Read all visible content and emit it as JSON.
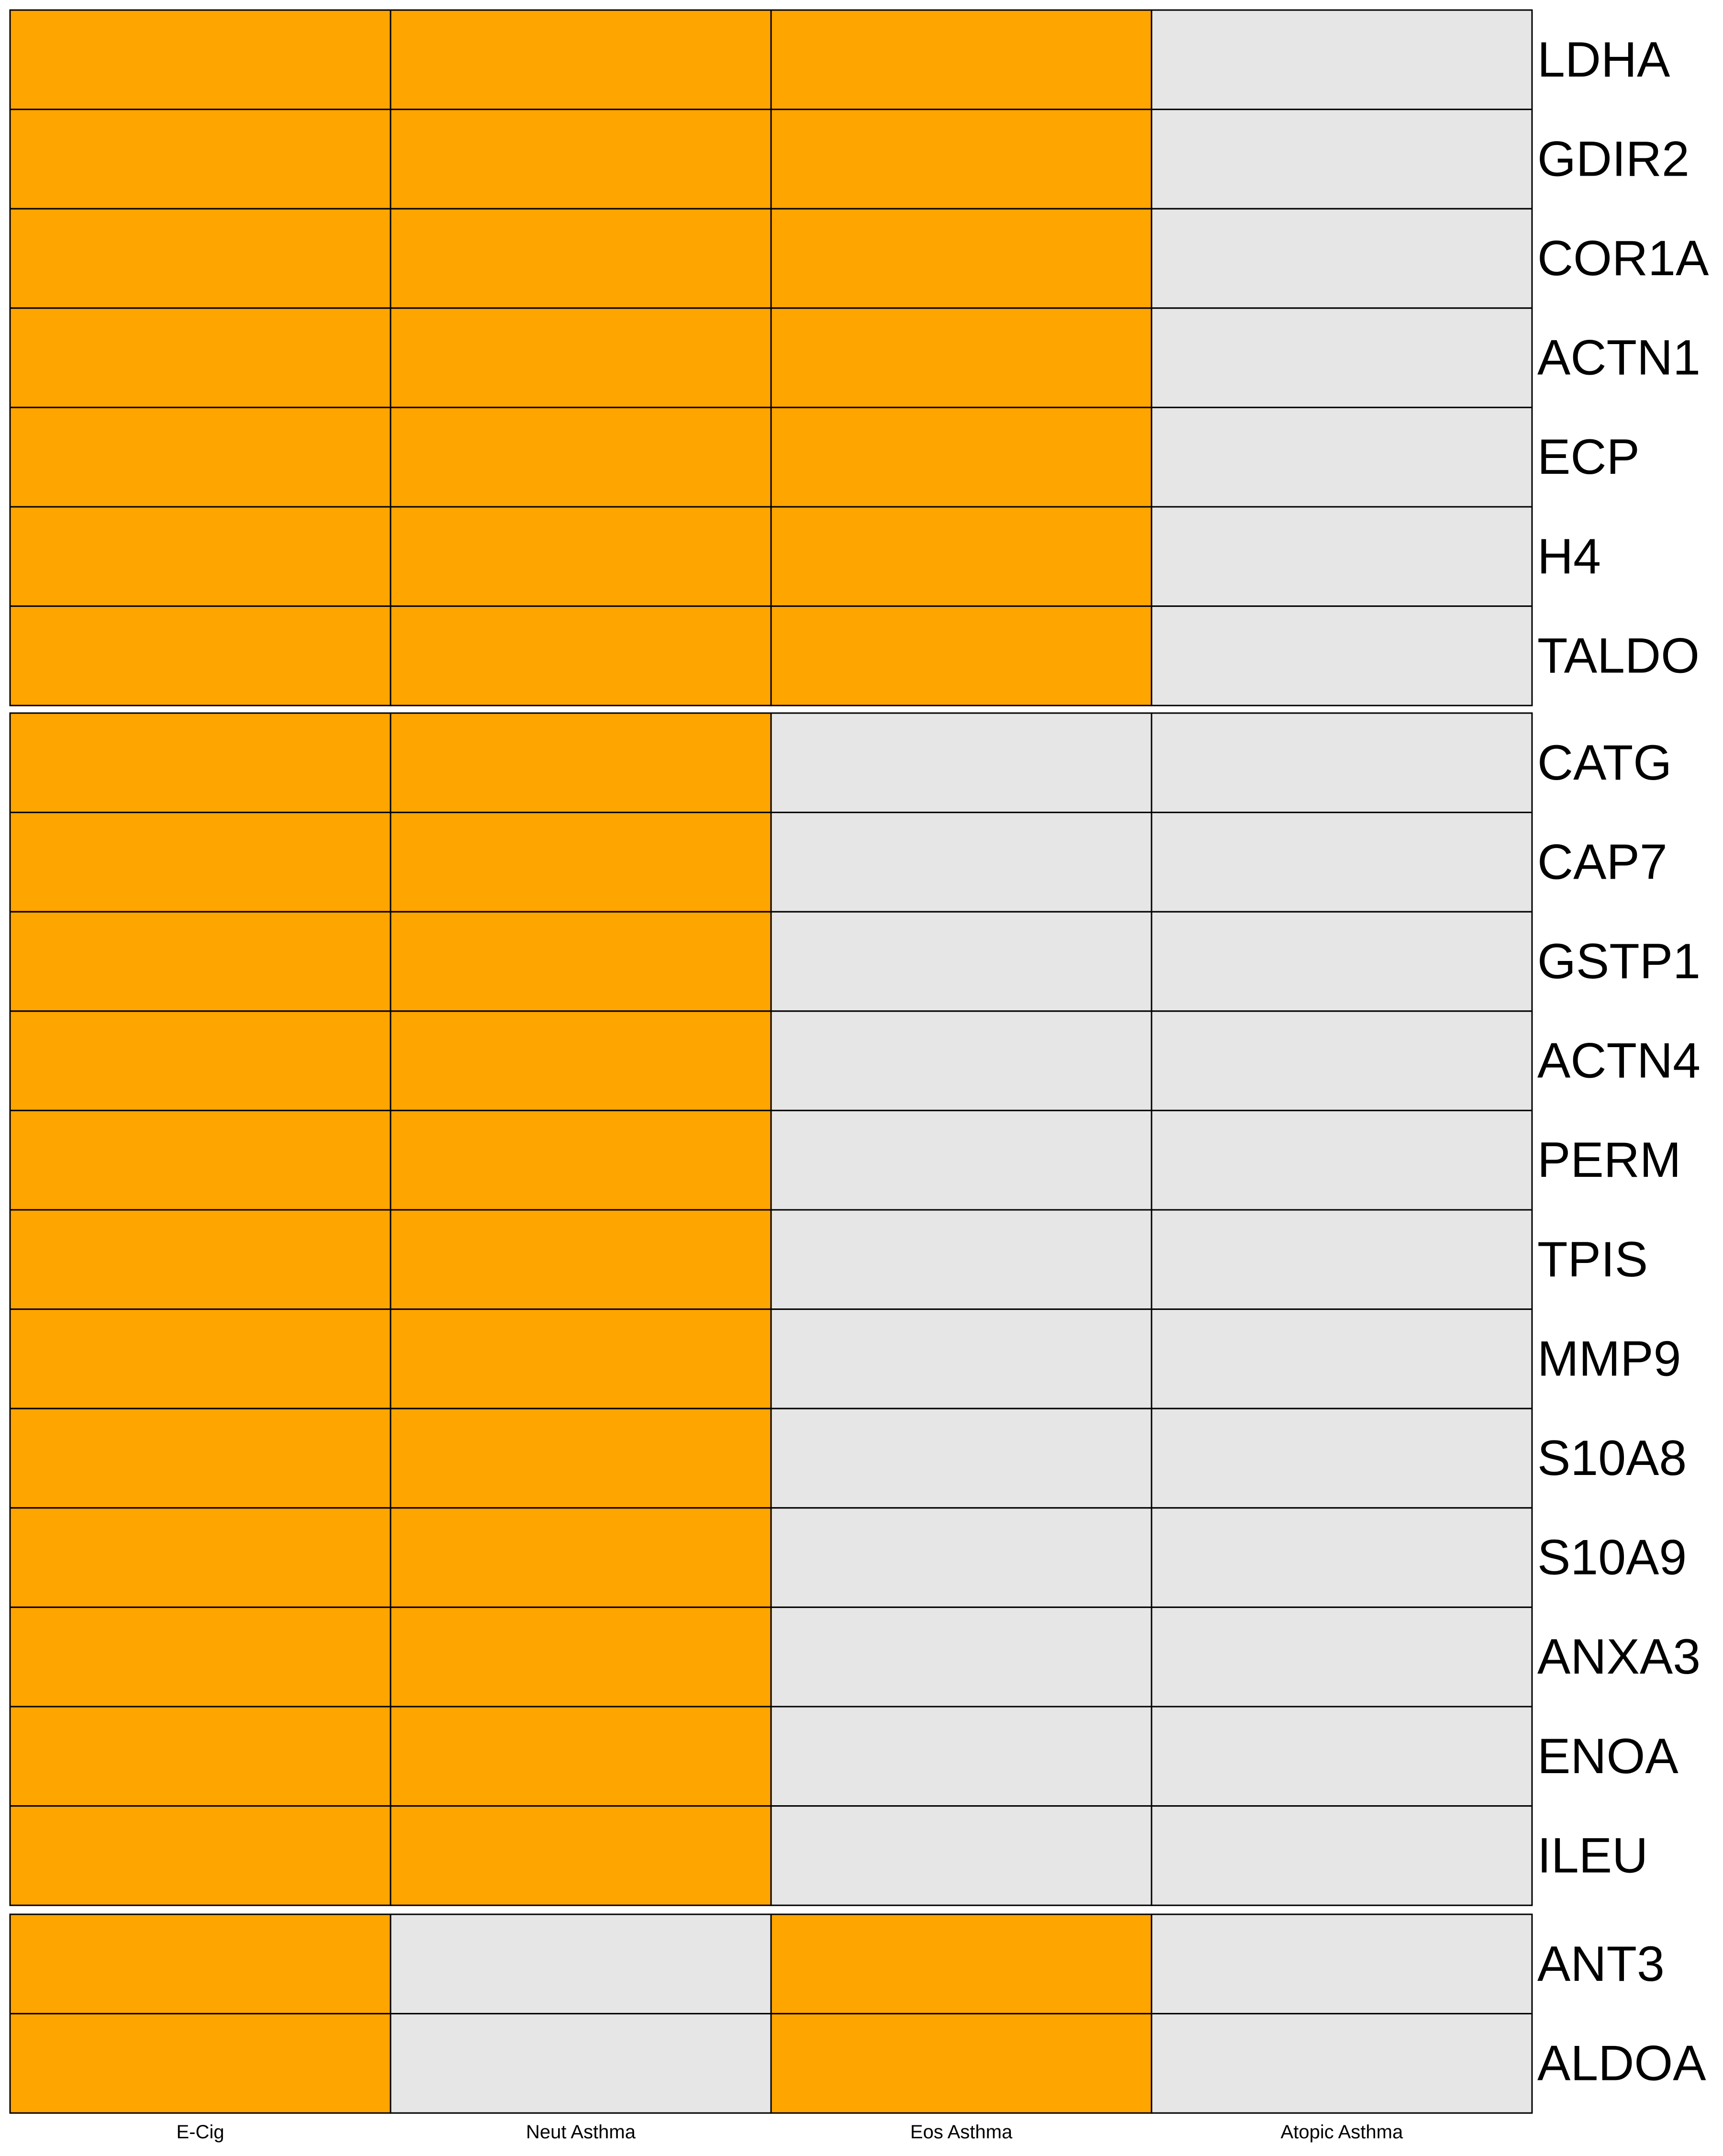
{
  "chart_data": {
    "type": "heatmap",
    "title": "",
    "xlabel": "",
    "ylabel": "",
    "columns": [
      "E-Cig",
      "Neut Asthma",
      "Eos Asthma",
      "Atopic Asthma"
    ],
    "colors": {
      "present": "#FFA500",
      "absent": "#E6E6E6",
      "border": "#000000"
    },
    "value_encoding": {
      "1": "present",
      "0": "absent"
    },
    "groups": [
      {
        "rows": [
          {
            "label": "LDHA",
            "values": [
              1,
              1,
              1,
              0
            ]
          },
          {
            "label": "GDIR2",
            "values": [
              1,
              1,
              1,
              0
            ]
          },
          {
            "label": "COR1A",
            "values": [
              1,
              1,
              1,
              0
            ]
          },
          {
            "label": "ACTN1",
            "values": [
              1,
              1,
              1,
              0
            ]
          },
          {
            "label": "ECP",
            "values": [
              1,
              1,
              1,
              0
            ]
          },
          {
            "label": "H4",
            "values": [
              1,
              1,
              1,
              0
            ]
          },
          {
            "label": "TALDO",
            "values": [
              1,
              1,
              1,
              0
            ]
          }
        ]
      },
      {
        "rows": [
          {
            "label": "CATG",
            "values": [
              1,
              1,
              0,
              0
            ]
          },
          {
            "label": "CAP7",
            "values": [
              1,
              1,
              0,
              0
            ]
          },
          {
            "label": "GSTP1",
            "values": [
              1,
              1,
              0,
              0
            ]
          },
          {
            "label": "ACTN4",
            "values": [
              1,
              1,
              0,
              0
            ]
          },
          {
            "label": "PERM",
            "values": [
              1,
              1,
              0,
              0
            ]
          },
          {
            "label": "TPIS",
            "values": [
              1,
              1,
              0,
              0
            ]
          },
          {
            "label": "MMP9",
            "values": [
              1,
              1,
              0,
              0
            ]
          },
          {
            "label": "S10A8",
            "values": [
              1,
              1,
              0,
              0
            ]
          },
          {
            "label": "S10A9",
            "values": [
              1,
              1,
              0,
              0
            ]
          },
          {
            "label": "ANXA3",
            "values": [
              1,
              1,
              0,
              0
            ]
          },
          {
            "label": "ENOA",
            "values": [
              1,
              1,
              0,
              0
            ]
          },
          {
            "label": "ILEU",
            "values": [
              1,
              1,
              0,
              0
            ]
          }
        ]
      },
      {
        "rows": [
          {
            "label": "ANT3",
            "values": [
              1,
              0,
              1,
              0
            ]
          },
          {
            "label": "ALDOA",
            "values": [
              1,
              0,
              1,
              0
            ]
          }
        ]
      }
    ]
  }
}
